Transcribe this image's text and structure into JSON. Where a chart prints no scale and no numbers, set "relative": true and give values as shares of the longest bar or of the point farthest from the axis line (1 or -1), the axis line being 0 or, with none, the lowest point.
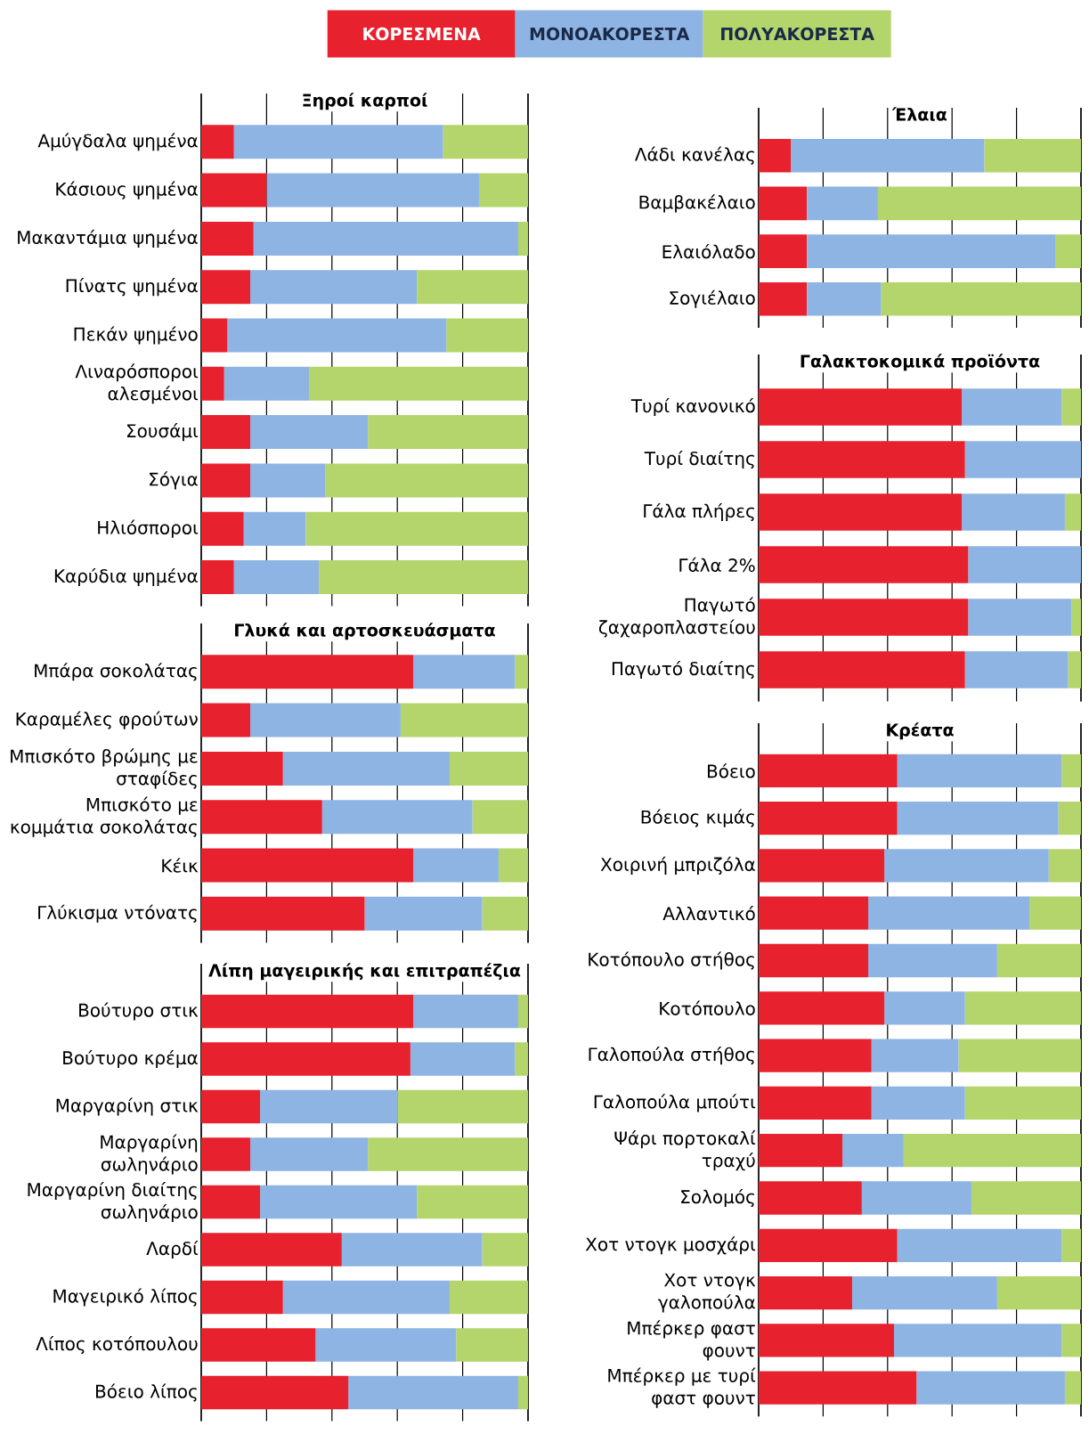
{
  "chart_data": [
    {
      "type": "bar",
      "orientation": "horizontal",
      "stacked": true,
      "relative": true,
      "title": "Ξηροί καρποί",
      "legend": "top",
      "grid": "x",
      "categories": [
        "Αμύγδαλα ψημένα",
        "Κάσιους ψημένα",
        "Μακαντάμια ψημένα",
        "Πίνατς ψημένα",
        "Πεκάν ψημένο",
        "Λιναρόσποροι αλεσμένοι",
        "Σουσάμι",
        "Σόγια",
        "Ηλιόσποροι",
        "Καρύδια ψημένα"
      ],
      "series": [
        {
          "name": "ΚΟΡΕΣΜΕΝΑ",
          "color": "#e8212e",
          "values": [
            0.1,
            0.2,
            0.16,
            0.15,
            0.08,
            0.07,
            0.15,
            0.15,
            0.13,
            0.1
          ]
        },
        {
          "name": "ΜΟΝΟΑΚΟΡΕΣΤΑ",
          "color": "#8eb4e3",
          "values": [
            0.64,
            0.65,
            0.81,
            0.51,
            0.67,
            0.26,
            0.36,
            0.23,
            0.19,
            0.26
          ]
        },
        {
          "name": "ΠΟΛΥΑΚΟΡΕΣΤΑ",
          "color": "#b3d56b",
          "values": [
            0.26,
            0.15,
            0.03,
            0.34,
            0.25,
            0.67,
            0.49,
            0.62,
            0.68,
            0.64
          ]
        }
      ]
    },
    {
      "type": "bar",
      "orientation": "horizontal",
      "stacked": true,
      "relative": true,
      "title": "Γλυκά και αρτοσκευάσματα",
      "grid": "x",
      "categories": [
        "Μπάρα σοκολάτας",
        "Καραμέλες φρούτων",
        "Μπισκότο βρώμης με σταφίδες",
        "Μπισκότο με κομμάτια σοκολάτας",
        "Κέικ",
        "Γλύκισμα ντόνατς"
      ],
      "series": [
        {
          "color": "#e8212e",
          "values": [
            0.65,
            0.15,
            0.25,
            0.37,
            0.65,
            0.5
          ]
        },
        {
          "color": "#8eb4e3",
          "values": [
            0.31,
            0.46,
            0.51,
            0.46,
            0.26,
            0.36
          ]
        },
        {
          "color": "#b3d56b",
          "values": [
            0.04,
            0.39,
            0.24,
            0.17,
            0.09,
            0.14
          ]
        }
      ]
    },
    {
      "type": "bar",
      "orientation": "horizontal",
      "stacked": true,
      "relative": true,
      "title": "Λίπη μαγειρικής και επιτραπέζια",
      "grid": "x",
      "categories": [
        "Βούτυρο στικ",
        "Βούτυρο κρέμα",
        "Μαργαρίνη στικ",
        "Μαργαρίνη σωληνάριο",
        "Μαργαρίνη διαίτης σωληνάριο",
        "Λαρδί",
        "Μαγειρικό λίπος",
        "Λίπος κοτόπουλου",
        "Βόειο λίπος"
      ],
      "series": [
        {
          "color": "#e8212e",
          "values": [
            0.65,
            0.64,
            0.18,
            0.15,
            0.18,
            0.43,
            0.25,
            0.35,
            0.45
          ]
        },
        {
          "color": "#8eb4e3",
          "values": [
            0.32,
            0.32,
            0.42,
            0.36,
            0.48,
            0.43,
            0.51,
            0.43,
            0.52
          ]
        },
        {
          "color": "#b3d56b",
          "values": [
            0.03,
            0.04,
            0.4,
            0.49,
            0.34,
            0.14,
            0.24,
            0.22,
            0.03
          ]
        }
      ]
    },
    {
      "type": "bar",
      "orientation": "horizontal",
      "stacked": true,
      "relative": true,
      "title": "Έλαια",
      "grid": "x",
      "categories": [
        "Λάδι κανέλας",
        "Βαμβακέλαιο",
        "Ελαιόλαδο",
        "Σογιέλαιο"
      ],
      "series": [
        {
          "color": "#e8212e",
          "values": [
            0.1,
            0.15,
            0.15,
            0.15
          ]
        },
        {
          "color": "#8eb4e3",
          "values": [
            0.6,
            0.22,
            0.77,
            0.23
          ]
        },
        {
          "color": "#b3d56b",
          "values": [
            0.3,
            0.63,
            0.08,
            0.62
          ]
        }
      ]
    },
    {
      "type": "bar",
      "orientation": "horizontal",
      "stacked": true,
      "relative": true,
      "title": "Γαλακτοκομικά προϊόντα",
      "grid": "x",
      "categories": [
        "Τυρί κανονικό",
        "Τυρί διαίτης",
        "Γάλα πλήρες",
        "Γάλα 2%",
        "Παγωτό ζαχαροπλαστείου",
        "Παγωτό διαίτης"
      ],
      "series": [
        {
          "color": "#e8212e",
          "values": [
            0.63,
            0.64,
            0.63,
            0.65,
            0.65,
            0.64
          ]
        },
        {
          "color": "#8eb4e3",
          "values": [
            0.31,
            0.36,
            0.32,
            0.35,
            0.32,
            0.32
          ]
        },
        {
          "color": "#b3d56b",
          "values": [
            0.06,
            0,
            0.05,
            0,
            0.03,
            0.04
          ]
        }
      ]
    },
    {
      "type": "bar",
      "orientation": "horizontal",
      "stacked": true,
      "relative": true,
      "title": "Κρέατα",
      "grid": "x",
      "categories": [
        "Βόειο",
        "Βόειος κιμάς",
        "Χοιρινή μπριζόλα",
        "Αλλαντικό",
        "Κοτόπουλο στήθος",
        "Κοτόπουλο",
        "Γαλοπούλα στήθος",
        "Γαλοπούλα μπούτι",
        "Ψάρι πορτοκαλί τραχύ",
        "Σολομός",
        "Χοτ ντογκ μοσχάρι",
        "Χοτ ντογκ γαλοπούλα",
        "Μπέρκερ φαστ φουντ",
        "Μπέρκερ με τυρί φαστ φουντ"
      ],
      "series": [
        {
          "color": "#e8212e",
          "values": [
            0.43,
            0.43,
            0.39,
            0.34,
            0.34,
            0.39,
            0.35,
            0.35,
            0.26,
            0.32,
            0.43,
            0.29,
            0.42,
            0.49
          ]
        },
        {
          "color": "#8eb4e3",
          "values": [
            0.51,
            0.5,
            0.51,
            0.5,
            0.4,
            0.25,
            0.27,
            0.29,
            0.19,
            0.34,
            0.51,
            0.45,
            0.52,
            0.46
          ]
        },
        {
          "color": "#b3d56b",
          "values": [
            0.06,
            0.07,
            0.1,
            0.16,
            0.26,
            0.36,
            0.38,
            0.36,
            0.55,
            0.34,
            0.06,
            0.26,
            0.06,
            0.05
          ]
        }
      ]
    }
  ]
}
